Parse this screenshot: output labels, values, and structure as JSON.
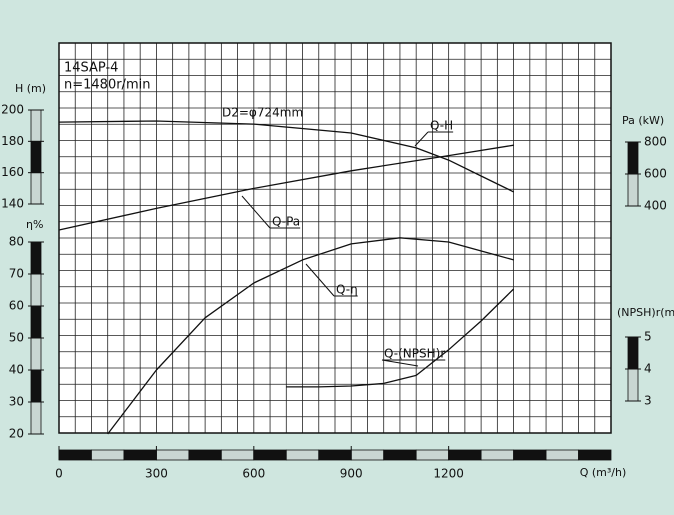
{
  "chart_data": {
    "type": "line",
    "title": "14SAP-4",
    "subtitle": "n=1480r/min",
    "annotations": [
      "D2=φ724mm"
    ],
    "xlabel": "Q (m³/h)",
    "xlim": [
      0,
      1700
    ],
    "xticks": [
      0,
      300,
      600,
      900,
      1200
    ],
    "ylabel": "H (m)",
    "ylim": [
      140,
      200
    ],
    "yticks": [
      140,
      160,
      180,
      200
    ],
    "y2label": "Pa (kW)",
    "y2lim": [
      400,
      800
    ],
    "y2ticks": [
      400,
      600,
      800
    ],
    "y3label": "η%",
    "y3lim": [
      20,
      80
    ],
    "y3ticks": [
      20,
      30,
      40,
      50,
      60,
      70,
      80
    ],
    "y4label": "(NPSH)r(m)",
    "y4lim": [
      3,
      5
    ],
    "y4ticks": [
      3,
      4,
      5
    ],
    "grid": true,
    "series": [
      {
        "name": "Q-H",
        "axis": "y",
        "color": "#111111",
        "x": [
          0,
          300,
          600,
          900,
          1100,
          1200,
          1300,
          1400
        ],
        "values": [
          192.3,
          193,
          191,
          185.3,
          175.8,
          168,
          157.9,
          147.7
        ]
      },
      {
        "name": "Q-Pa",
        "axis": "y2",
        "color": "#111111",
        "x": [
          0,
          300,
          600,
          900,
          1200,
          1400
        ],
        "values": [
          250,
          385,
          510,
          620,
          715,
          780
        ]
      },
      {
        "name": "Q-η",
        "axis": "y3",
        "color": "#111111",
        "x": [
          150,
          300,
          450,
          600,
          750,
          900,
          1050,
          1200,
          1400
        ],
        "values": [
          20,
          40,
          56.3,
          67.2,
          74.4,
          79.4,
          81.3,
          80,
          74.4
        ]
      },
      {
        "name": "Q-(NPSH)r",
        "axis": "y4",
        "color": "#111111",
        "x": [
          700,
          800,
          900,
          1000,
          1100,
          1200,
          1300,
          1400
        ],
        "values": [
          3.44,
          3.44,
          3.47,
          3.55,
          3.8,
          4.6,
          5.5,
          6.5
        ]
      }
    ]
  }
}
